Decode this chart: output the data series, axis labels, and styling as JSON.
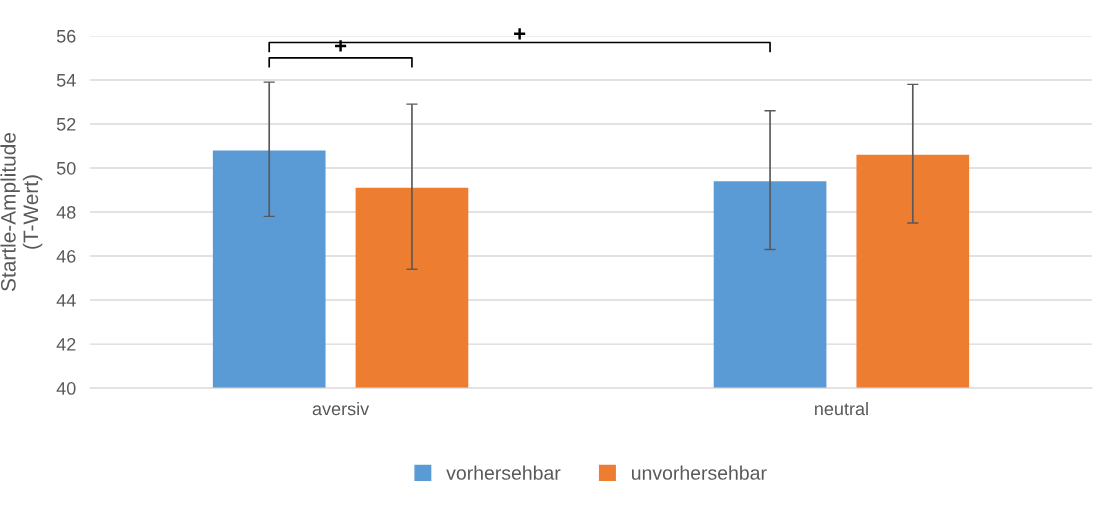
{
  "chart_data": {
    "type": "bar",
    "ylabel": "Startle-Amplitude\n(T-Wert)",
    "categories": [
      "aversiv",
      "neutral"
    ],
    "series": [
      {
        "name": "vorhersehbar",
        "color": "#5b9bd5",
        "values": [
          50.8,
          49.4
        ],
        "errors": [
          [
            47.8,
            53.9
          ],
          [
            46.3,
            52.6
          ]
        ]
      },
      {
        "name": "unvorhersehbar",
        "color": "#ed7d31",
        "values": [
          49.1,
          50.6
        ],
        "errors": [
          [
            45.4,
            52.9
          ],
          [
            47.5,
            53.8
          ]
        ]
      }
    ],
    "ylim": [
      40,
      56
    ],
    "yticks": [
      40,
      42,
      44,
      46,
      48,
      50,
      52,
      54,
      56
    ],
    "grid": "y",
    "legend": "bottom",
    "annotations": [
      "+",
      "+"
    ]
  }
}
